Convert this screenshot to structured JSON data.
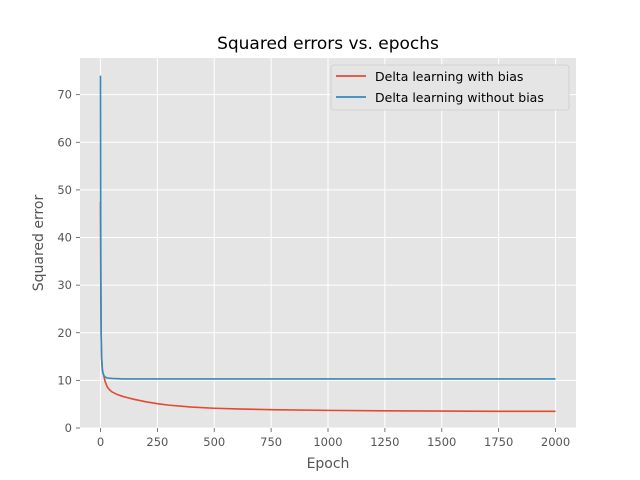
{
  "chart_data": {
    "type": "line",
    "title": "Squared errors vs. epochs",
    "xlabel": "Epoch",
    "ylabel": "Squared error",
    "xlim": [
      -90,
      2090
    ],
    "ylim": [
      0,
      77.7
    ],
    "xticks": [
      0,
      250,
      500,
      750,
      1000,
      1250,
      1500,
      1750,
      2000
    ],
    "yticks": [
      0,
      10,
      20,
      30,
      40,
      50,
      60,
      70
    ],
    "grid": true,
    "legend_position": "top-right",
    "style": "ggplot",
    "series": [
      {
        "name": "Delta learning with bias",
        "color": "#E24A33",
        "x": [
          0,
          1,
          2,
          3,
          5,
          8,
          10,
          15,
          20,
          30,
          40,
          50,
          75,
          100,
          150,
          200,
          250,
          300,
          400,
          500,
          600,
          750,
          1000,
          1250,
          1500,
          1750,
          2000
        ],
        "y": [
          47.5,
          35,
          25,
          19,
          14.5,
          12.5,
          11.8,
          10.9,
          9.8,
          8.6,
          8.0,
          7.6,
          7.0,
          6.6,
          6.0,
          5.5,
          5.1,
          4.8,
          4.4,
          4.15,
          4.0,
          3.85,
          3.7,
          3.6,
          3.55,
          3.5,
          3.5
        ]
      },
      {
        "name": "Delta learning without bias",
        "color": "#348ABD",
        "x": [
          0,
          1,
          2,
          3,
          5,
          8,
          10,
          15,
          20,
          30,
          50,
          75,
          100,
          250,
          500,
          1000,
          1500,
          2000
        ],
        "y": [
          74,
          45,
          28,
          20,
          15,
          12.5,
          11.7,
          11.0,
          10.7,
          10.5,
          10.4,
          10.35,
          10.3,
          10.3,
          10.3,
          10.3,
          10.3,
          10.3
        ]
      }
    ]
  }
}
